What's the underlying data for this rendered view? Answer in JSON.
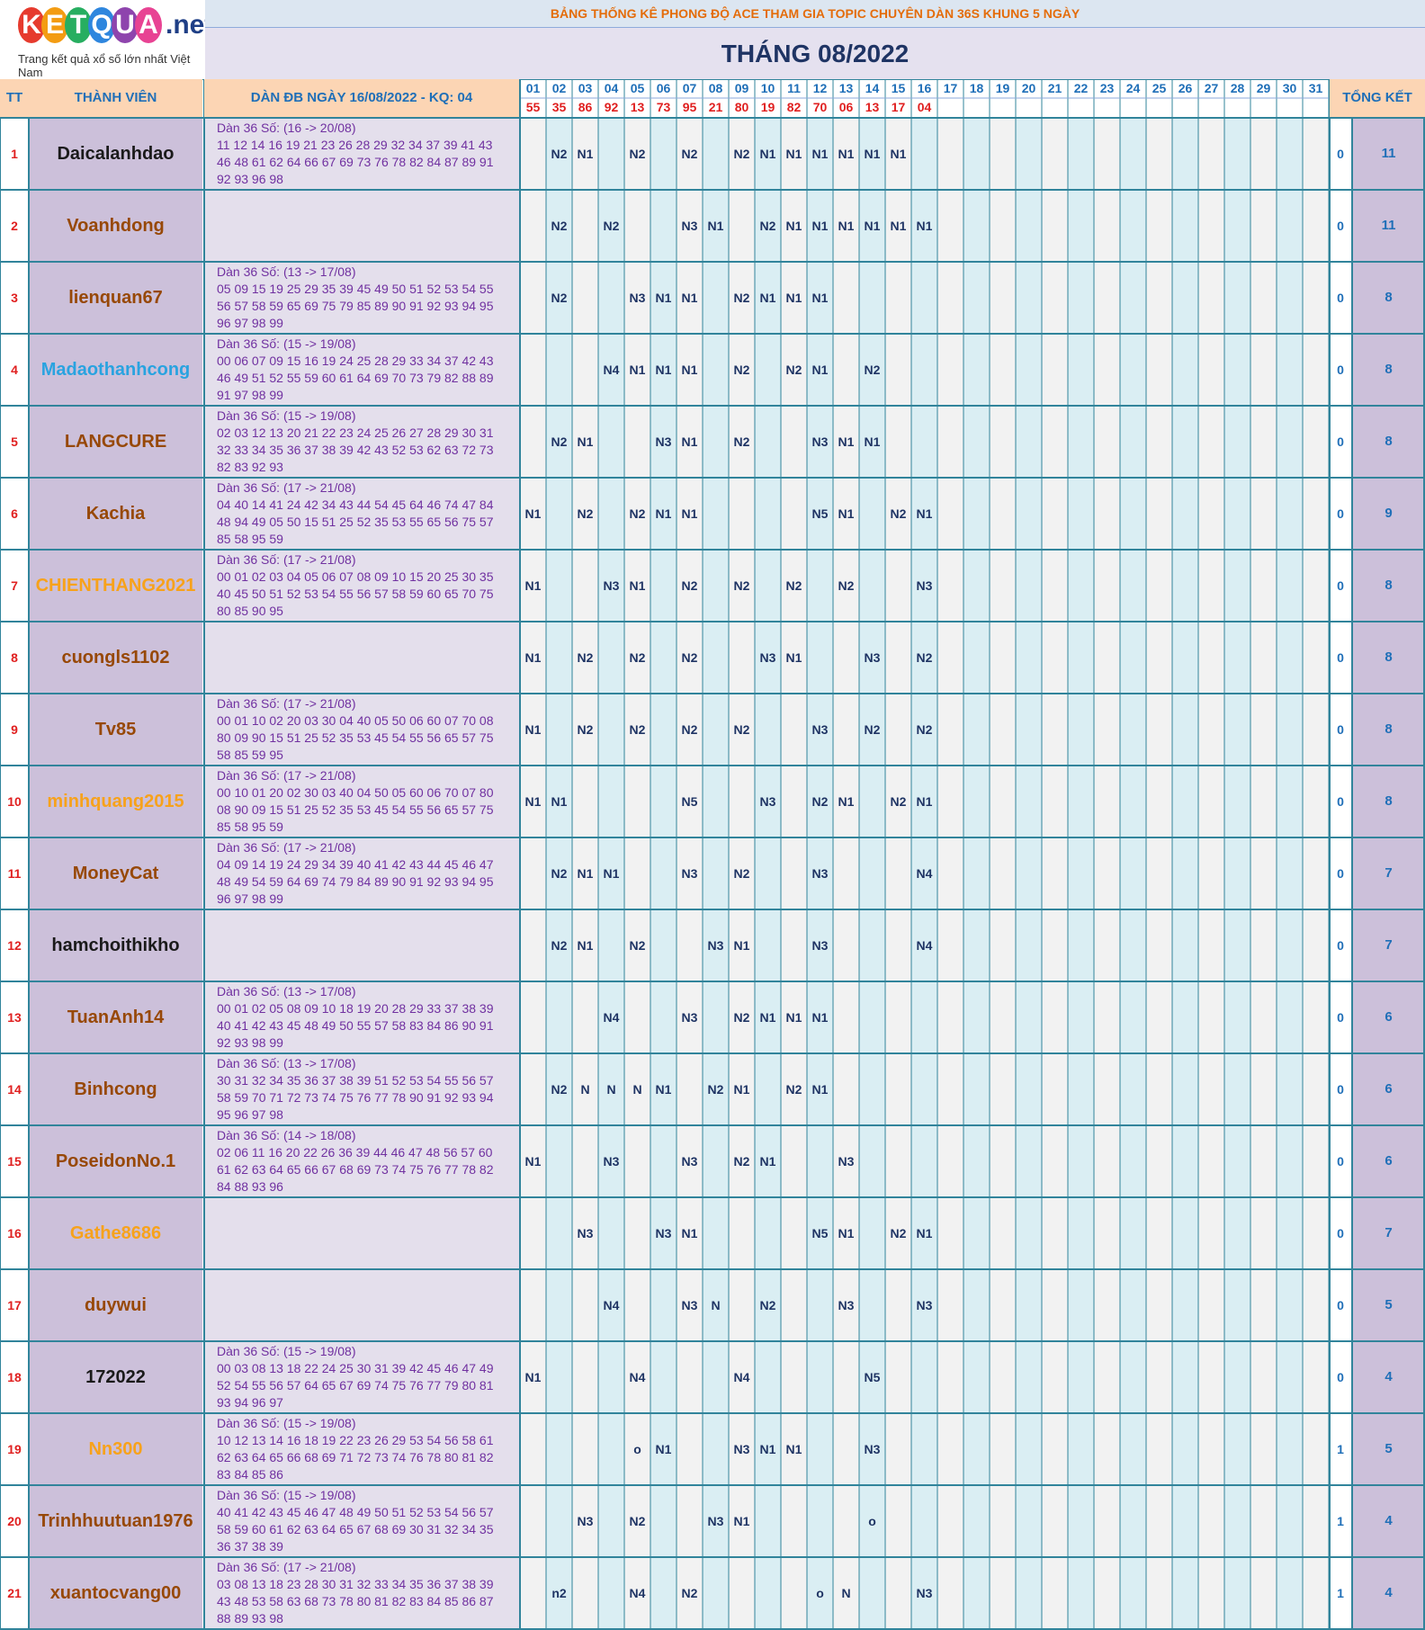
{
  "logo": {
    "letters": [
      {
        "ch": "K",
        "color": "#e63b2e"
      },
      {
        "ch": "E",
        "color": "#f39c12"
      },
      {
        "ch": "T",
        "color": "#27ae60"
      },
      {
        "ch": "Q",
        "color": "#2e86de"
      },
      {
        "ch": "U",
        "color": "#8e44ad"
      },
      {
        "ch": "A",
        "color": "#e84393"
      }
    ],
    "suffix": ".net",
    "tagline": "Trang kết quả xổ số lớn nhất Việt Nam"
  },
  "banner": "BẢNG THỐNG KÊ PHONG ĐỘ ACE THAM GIA TOPIC CHUYÊN DÀN 36S KHUNG 5 NGÀY",
  "month_title": "THÁNG 08/2022",
  "headers": {
    "tt": "TT",
    "member": "THÀNH VIÊN",
    "dan": "DÀN ĐB NGÀY 16/08/2022 - KQ: 04",
    "total": "TỔNG KẾT"
  },
  "days": [
    "01",
    "02",
    "03",
    "04",
    "05",
    "06",
    "07",
    "08",
    "09",
    "10",
    "11",
    "12",
    "13",
    "14",
    "15",
    "16",
    "17",
    "18",
    "19",
    "20",
    "21",
    "22",
    "23",
    "24",
    "25",
    "26",
    "27",
    "28",
    "29",
    "30",
    "31"
  ],
  "results": [
    "55",
    "35",
    "86",
    "92",
    "13",
    "73",
    "95",
    "21",
    "80",
    "19",
    "82",
    "70",
    "06",
    "13",
    "17",
    "04",
    "",
    "",
    "",
    "",
    "",
    "",
    "",
    "",
    "",
    "",
    "",
    "",
    "",
    "",
    ""
  ],
  "colors": {
    "name_brown": "#974806",
    "name_black": "#1a1a1a",
    "name_blue": "#29a3e0",
    "name_orange": "#f7a21b"
  },
  "rows": [
    {
      "tt": "1",
      "name": "Daicalanhdao",
      "color": "black",
      "dan": [
        "Dàn 36 Số: (16 -> 20/08)",
        "11 12 14 16 19 21 23 26 28 29 32 34 37 39 41 43",
        "46 48 61 62 64 66 67 69 73 76 78 82 84 87 89 91",
        "92 93 96 98"
      ],
      "marks": [
        "",
        "N2",
        "N1",
        "",
        "N2",
        "",
        "N2",
        "",
        "N2",
        "N1",
        "N1",
        "N1",
        "N1",
        "N1",
        "N1",
        "",
        "",
        "",
        "",
        "",
        "",
        "",
        "",
        "",
        "",
        "",
        "",
        "",
        "",
        "",
        ""
      ],
      "t0": "0",
      "t1": "11"
    },
    {
      "tt": "2",
      "name": "Voanhdong",
      "color": "brown",
      "dan": [],
      "marks": [
        "",
        "N2",
        "",
        "N2",
        "",
        "",
        "N3",
        "N1",
        "",
        "N2",
        "N1",
        "N1",
        "N1",
        "N1",
        "N1",
        "N1",
        "",
        "",
        "",
        "",
        "",
        "",
        "",
        "",
        "",
        "",
        "",
        "",
        "",
        "",
        ""
      ],
      "t0": "0",
      "t1": "11"
    },
    {
      "tt": "3",
      "name": "lienquan67",
      "color": "brown",
      "dan": [
        "Dàn 36 Số: (13 -> 17/08)",
        "05 09 15 19 25 29 35 39 45 49 50 51 52 53 54 55",
        "56 57 58 59 65 69 75 79 85 89 90 91 92 93 94 95",
        "96 97 98 99"
      ],
      "marks": [
        "",
        "N2",
        "",
        "",
        "N3",
        "N1",
        "N1",
        "",
        "N2",
        "N1",
        "N1",
        "N1",
        "",
        "",
        "",
        "",
        "",
        "",
        "",
        "",
        "",
        "",
        "",
        "",
        "",
        "",
        "",
        "",
        "",
        "",
        ""
      ],
      "t0": "0",
      "t1": "8"
    },
    {
      "tt": "4",
      "name": "Madaothanhcong",
      "color": "blue",
      "dan": [
        "Dàn 36 Số: (15 -> 19/08)",
        "00 06 07 09 15 16 19 24 25 28 29 33 34 37 42 43",
        "46 49 51 52 55 59 60 61 64 69 70 73 79 82 88 89",
        "91 97 98 99"
      ],
      "marks": [
        "",
        "",
        "",
        "N4",
        "N1",
        "N1",
        "N1",
        "",
        "N2",
        "",
        "N2",
        "N1",
        "",
        "N2",
        "",
        "",
        "",
        "",
        "",
        "",
        "",
        "",
        "",
        "",
        "",
        "",
        "",
        "",
        "",
        "",
        ""
      ],
      "t0": "0",
      "t1": "8"
    },
    {
      "tt": "5",
      "name": "LANGCURE",
      "color": "brown",
      "dan": [
        "Dàn 36 Số: (15 -> 19/08)",
        "02 03 12 13 20 21 22 23 24 25 26 27 28 29 30 31",
        "32 33 34 35 36 37 38 39 42 43 52 53 62 63 72 73",
        "82 83 92 93"
      ],
      "marks": [
        "",
        "N2",
        "N1",
        "",
        "",
        "N3",
        "N1",
        "",
        "N2",
        "",
        "",
        "N3",
        "N1",
        "N1",
        "",
        "",
        "",
        "",
        "",
        "",
        "",
        "",
        "",
        "",
        "",
        "",
        "",
        "",
        "",
        "",
        ""
      ],
      "t0": "0",
      "t1": "8"
    },
    {
      "tt": "6",
      "name": "Kachia",
      "color": "brown",
      "dan": [
        "Dàn 36 Số: (17 -> 21/08)",
        "04 40 14 41 24 42 34 43 44 54 45 64 46 74 47 84",
        "48 94 49 05 50 15 51 25 52 35 53 55 65 56 75 57",
        "85 58 95 59"
      ],
      "marks": [
        "N1",
        "",
        "N2",
        "",
        "N2",
        "N1",
        "N1",
        "",
        "",
        "",
        "",
        "N5",
        "N1",
        "",
        "N2",
        "N1",
        "",
        "",
        "",
        "",
        "",
        "",
        "",
        "",
        "",
        "",
        "",
        "",
        "",
        "",
        ""
      ],
      "t0": "0",
      "t1": "9"
    },
    {
      "tt": "7",
      "name": "CHIENTHANG2021",
      "color": "orange",
      "dan": [
        "Dàn 36 Số: (17 -> 21/08)",
        "00 01 02 03 04 05 06 07 08 09 10 15 20 25 30 35",
        "40 45 50 51 52 53 54 55 56 57 58 59 60 65 70 75",
        "80 85 90 95"
      ],
      "marks": [
        "N1",
        "",
        "",
        "N3",
        "N1",
        "",
        "N2",
        "",
        "N2",
        "",
        "N2",
        "",
        "N2",
        "",
        "",
        "N3",
        "",
        "",
        "",
        "",
        "",
        "",
        "",
        "",
        "",
        "",
        "",
        "",
        "",
        "",
        ""
      ],
      "t0": "0",
      "t1": "8"
    },
    {
      "tt": "8",
      "name": "cuongls1102",
      "color": "brown",
      "dan": [],
      "marks": [
        "N1",
        "",
        "N2",
        "",
        "N2",
        "",
        "N2",
        "",
        "",
        "N3",
        "N1",
        "",
        "",
        "N3",
        "",
        "N2",
        "",
        "",
        "",
        "",
        "",
        "",
        "",
        "",
        "",
        "",
        "",
        "",
        "",
        "",
        ""
      ],
      "t0": "0",
      "t1": "8"
    },
    {
      "tt": "9",
      "name": "Tv85",
      "color": "brown",
      "dan": [
        "Dàn 36 Số: (17 -> 21/08)",
        "00 01 10 02 20 03 30 04 40 05 50 06 60 07 70 08",
        "80 09 90 15 51 25 52 35 53 45 54 55 56 65 57 75",
        "58 85 59 95"
      ],
      "marks": [
        "N1",
        "",
        "N2",
        "",
        "N2",
        "",
        "N2",
        "",
        "N2",
        "",
        "",
        "N3",
        "",
        "N2",
        "",
        "N2",
        "",
        "",
        "",
        "",
        "",
        "",
        "",
        "",
        "",
        "",
        "",
        "",
        "",
        "",
        ""
      ],
      "t0": "0",
      "t1": "8"
    },
    {
      "tt": "10",
      "name": "minhquang2015",
      "color": "orange",
      "dan": [
        "Dàn 36 Số: (17 -> 21/08)",
        "00 10 01 20 02 30 03 40 04 50 05 60 06 70 07 80",
        "08 90 09 15 51 25 52 35 53 45 54 55 56 65 57 75",
        "85 58 95 59"
      ],
      "marks": [
        "N1",
        "N1",
        "",
        "",
        "",
        "",
        "N5",
        "",
        "",
        "N3",
        "",
        "N2",
        "N1",
        "",
        "N2",
        "N1",
        "",
        "",
        "",
        "",
        "",
        "",
        "",
        "",
        "",
        "",
        "",
        "",
        "",
        "",
        ""
      ],
      "t0": "0",
      "t1": "8"
    },
    {
      "tt": "11",
      "name": "MoneyCat",
      "color": "brown",
      "dan": [
        "Dàn 36 Số: (17 -> 21/08)",
        "04 09 14 19 24 29 34 39 40 41 42 43 44 45 46 47",
        "48 49 54 59 64 69 74 79 84 89 90 91 92 93 94 95",
        "96 97 98 99"
      ],
      "marks": [
        "",
        "N2",
        "N1",
        "N1",
        "",
        "",
        "N3",
        "",
        "N2",
        "",
        "",
        "N3",
        "",
        "",
        "",
        "N4",
        "",
        "",
        "",
        "",
        "",
        "",
        "",
        "",
        "",
        "",
        "",
        "",
        "",
        "",
        ""
      ],
      "t0": "0",
      "t1": "7"
    },
    {
      "tt": "12",
      "name": "hamchoithikho",
      "color": "black",
      "dan": [],
      "marks": [
        "",
        "N2",
        "N1",
        "",
        "N2",
        "",
        "",
        "N3",
        "N1",
        "",
        "",
        "N3",
        "",
        "",
        "",
        "N4",
        "",
        "",
        "",
        "",
        "",
        "",
        "",
        "",
        "",
        "",
        "",
        "",
        "",
        "",
        ""
      ],
      "t0": "0",
      "t1": "7"
    },
    {
      "tt": "13",
      "name": "TuanAnh14",
      "color": "brown",
      "dan": [
        "Dàn 36 Số: (13 -> 17/08)",
        "00 01 02 05 08 09 10 18 19 20 28 29 33 37 38 39",
        "40 41 42 43 45 48 49 50 55 57 58 83 84 86 90 91",
        "92 93 98 99"
      ],
      "marks": [
        "",
        "",
        "",
        "N4",
        "",
        "",
        "N3",
        "",
        "N2",
        "N1",
        "N1",
        "N1",
        "",
        "",
        "",
        "",
        "",
        "",
        "",
        "",
        "",
        "",
        "",
        "",
        "",
        "",
        "",
        "",
        "",
        "",
        ""
      ],
      "t0": "0",
      "t1": "6"
    },
    {
      "tt": "14",
      "name": "Binhcong",
      "color": "brown",
      "dan": [
        "Dàn 36 Số: (13 -> 17/08)",
        "30 31 32 34 35 36 37 38 39 51 52 53 54 55 56 57",
        "58 59 70 71 72 73 74 75 76 77 78 90 91 92 93 94",
        "95 96 97 98"
      ],
      "marks": [
        "",
        "N2",
        "N",
        "N",
        "N",
        "N1",
        "",
        "N2",
        "N1",
        "",
        "N2",
        "N1",
        "",
        "",
        "",
        "",
        "",
        "",
        "",
        "",
        "",
        "",
        "",
        "",
        "",
        "",
        "",
        "",
        "",
        "",
        ""
      ],
      "t0": "0",
      "t1": "6"
    },
    {
      "tt": "15",
      "name": "PoseidonNo.1",
      "color": "brown",
      "dan": [
        "Dàn 36 Số: (14 -> 18/08)",
        "02 06 11 16 20 22 26 36 39 44 46 47 48 56 57 60",
        "61 62 63 64 65 66 67 68 69 73 74 75 76 77 78 82",
        "84 88 93 96"
      ],
      "marks": [
        "N1",
        "",
        "",
        "N3",
        "",
        "",
        "N3",
        "",
        "N2",
        "N1",
        "",
        "",
        "N3",
        "",
        "",
        "",
        "",
        "",
        "",
        "",
        "",
        "",
        "",
        "",
        "",
        "",
        "",
        "",
        "",
        "",
        ""
      ],
      "t0": "0",
      "t1": "6"
    },
    {
      "tt": "16",
      "name": "Gathe8686",
      "color": "orange",
      "dan": [],
      "marks": [
        "",
        "",
        "N3",
        "",
        "",
        "N3",
        "N1",
        "",
        "",
        "",
        "",
        "N5",
        "N1",
        "",
        "N2",
        "N1",
        "",
        "",
        "",
        "",
        "",
        "",
        "",
        "",
        "",
        "",
        "",
        "",
        "",
        "",
        ""
      ],
      "t0": "0",
      "t1": "7"
    },
    {
      "tt": "17",
      "name": "duywui",
      "color": "brown",
      "dan": [],
      "marks": [
        "",
        "",
        "",
        "N4",
        "",
        "",
        "N3",
        "N",
        "",
        "N2",
        "",
        "",
        "N3",
        "",
        "",
        "N3",
        "",
        "",
        "",
        "",
        "",
        "",
        "",
        "",
        "",
        "",
        "",
        "",
        "",
        "",
        ""
      ],
      "t0": "0",
      "t1": "5"
    },
    {
      "tt": "18",
      "name": "172022",
      "color": "black",
      "dan": [
        "Dàn 36 Số: (15 -> 19/08)",
        "00 03 08 13 18 22 24 25 30 31 39 42 45 46 47 49",
        "52 54 55 56 57 64 65 67 69 74 75 76 77 79 80 81",
        "93 94 96 97"
      ],
      "marks": [
        "N1",
        "",
        "",
        "",
        "N4",
        "",
        "",
        "",
        "N4",
        "",
        "",
        "",
        "",
        "N5",
        "",
        "",
        "",
        "",
        "",
        "",
        "",
        "",
        "",
        "",
        "",
        "",
        "",
        "",
        "",
        "",
        ""
      ],
      "t0": "0",
      "t1": "4"
    },
    {
      "tt": "19",
      "name": "Nn300",
      "color": "orange",
      "dan": [
        "Dàn 36 Số: (15 -> 19/08)",
        "10 12 13 14 16 18 19 22 23 26 29 53 54 56 58 61",
        "62 63 64 65 66 68 69 71 72 73 74 76 78 80 81 82",
        "83 84 85 86"
      ],
      "marks": [
        "",
        "",
        "",
        "",
        "o",
        "N1",
        "",
        "",
        "N3",
        "N1",
        "N1",
        "",
        "",
        "N3",
        "",
        "",
        "",
        "",
        "",
        "",
        "",
        "",
        "",
        "",
        "",
        "",
        "",
        "",
        "",
        "",
        ""
      ],
      "t0": "1",
      "t1": "5"
    },
    {
      "tt": "20",
      "name": "Trinhhuutuan1976",
      "color": "brown",
      "dan": [
        "Dàn 36 Số: (15 -> 19/08)",
        "40 41 42 43 45 46 47 48 49 50 51 52 53 54 56 57",
        "58 59 60 61 62 63 64 65 67 68 69 30 31 32 34 35",
        "36 37 38 39"
      ],
      "marks": [
        "",
        "",
        "N3",
        "",
        "N2",
        "",
        "",
        "N3",
        "N1",
        "",
        "",
        "",
        "",
        "o",
        "",
        "",
        "",
        "",
        "",
        "",
        "",
        "",
        "",
        "",
        "",
        "",
        "",
        "",
        "",
        "",
        ""
      ],
      "t0": "1",
      "t1": "4"
    },
    {
      "tt": "21",
      "name": "xuantocvang00",
      "color": "brown",
      "dan": [
        "Dàn 36 Số: (17 -> 21/08)",
        "03 08 13 18 23 28 30 31 32 33 34 35 36 37 38 39",
        "43 48 53 58 63 68 73 78 80 81 82 83 84 85 86 87",
        "88 89 93 98"
      ],
      "marks": [
        "",
        "n2",
        "",
        "",
        "N4",
        "",
        "N2",
        "",
        "",
        "",
        "",
        "o",
        "N",
        "",
        "",
        "N3",
        "",
        "",
        "",
        "",
        "",
        "",
        "",
        "",
        "",
        "",
        "",
        "",
        "",
        "",
        ""
      ],
      "t0": "1",
      "t1": "4"
    }
  ]
}
